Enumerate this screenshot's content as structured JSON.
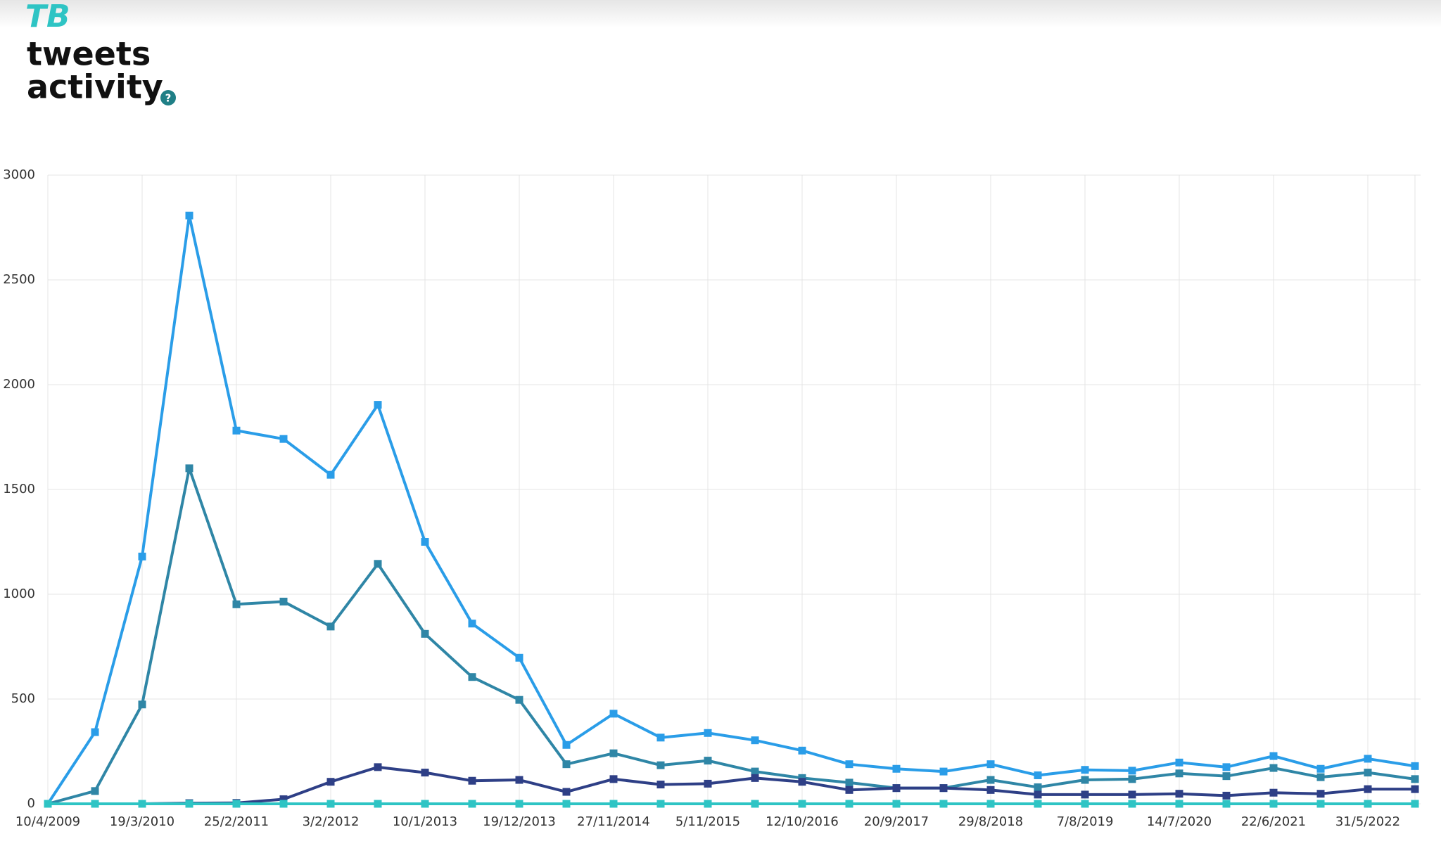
{
  "logo": "TB",
  "help_icon": "?",
  "chart_data": {
    "type": "line",
    "title": [
      "tweets",
      "activity"
    ],
    "categories": [
      "10/4/2009",
      null,
      "19/3/2010",
      null,
      "25/2/2011",
      null,
      "3/2/2012",
      null,
      "10/1/2013",
      null,
      "19/12/2013",
      null,
      "27/11/2014",
      null,
      "5/11/2015",
      null,
      "12/10/2016",
      null,
      "20/9/2017",
      null,
      "29/8/2018",
      null,
      "7/8/2019",
      null,
      "14/7/2020",
      null,
      "22/6/2021",
      null,
      "31/5/2022",
      null
    ],
    "series": [
      {
        "color": "#2a9de8",
        "values": [
          0,
          342,
          1180,
          2807,
          1781,
          1741,
          1570,
          1904,
          1250,
          860,
          697,
          281,
          430,
          316,
          338,
          303,
          254,
          189,
          167,
          154,
          189,
          136,
          162,
          158,
          197,
          175,
          228,
          167,
          215,
          180
        ]
      },
      {
        "color": "#2f86a6",
        "values": [
          0,
          61,
          474,
          1601,
          952,
          965,
          846,
          1145,
          811,
          605,
          496,
          189,
          241,
          184,
          206,
          154,
          123,
          101,
          75,
          75,
          114,
          79,
          114,
          118,
          145,
          132,
          171,
          127,
          149,
          118
        ]
      },
      {
        "color": "#2e3f86",
        "values": [
          0,
          0,
          0,
          3,
          4,
          22,
          105,
          175,
          149,
          110,
          114,
          57,
          118,
          92,
          96,
          123,
          105,
          66,
          75,
          75,
          66,
          44,
          44,
          44,
          48,
          39,
          53,
          48,
          70,
          70
        ]
      },
      {
        "color": "#2ec4c4",
        "values": [
          0,
          0,
          0,
          0,
          0,
          0,
          0,
          0,
          0,
          0,
          0,
          0,
          0,
          0,
          0,
          0,
          0,
          0,
          0,
          0,
          0,
          0,
          0,
          0,
          0,
          0,
          0,
          0,
          0,
          0
        ]
      }
    ],
    "ylim": [
      0,
      3000
    ],
    "yticks": [
      0,
      500,
      1000,
      1500,
      2000,
      2500,
      3000
    ],
    "grid": true
  }
}
